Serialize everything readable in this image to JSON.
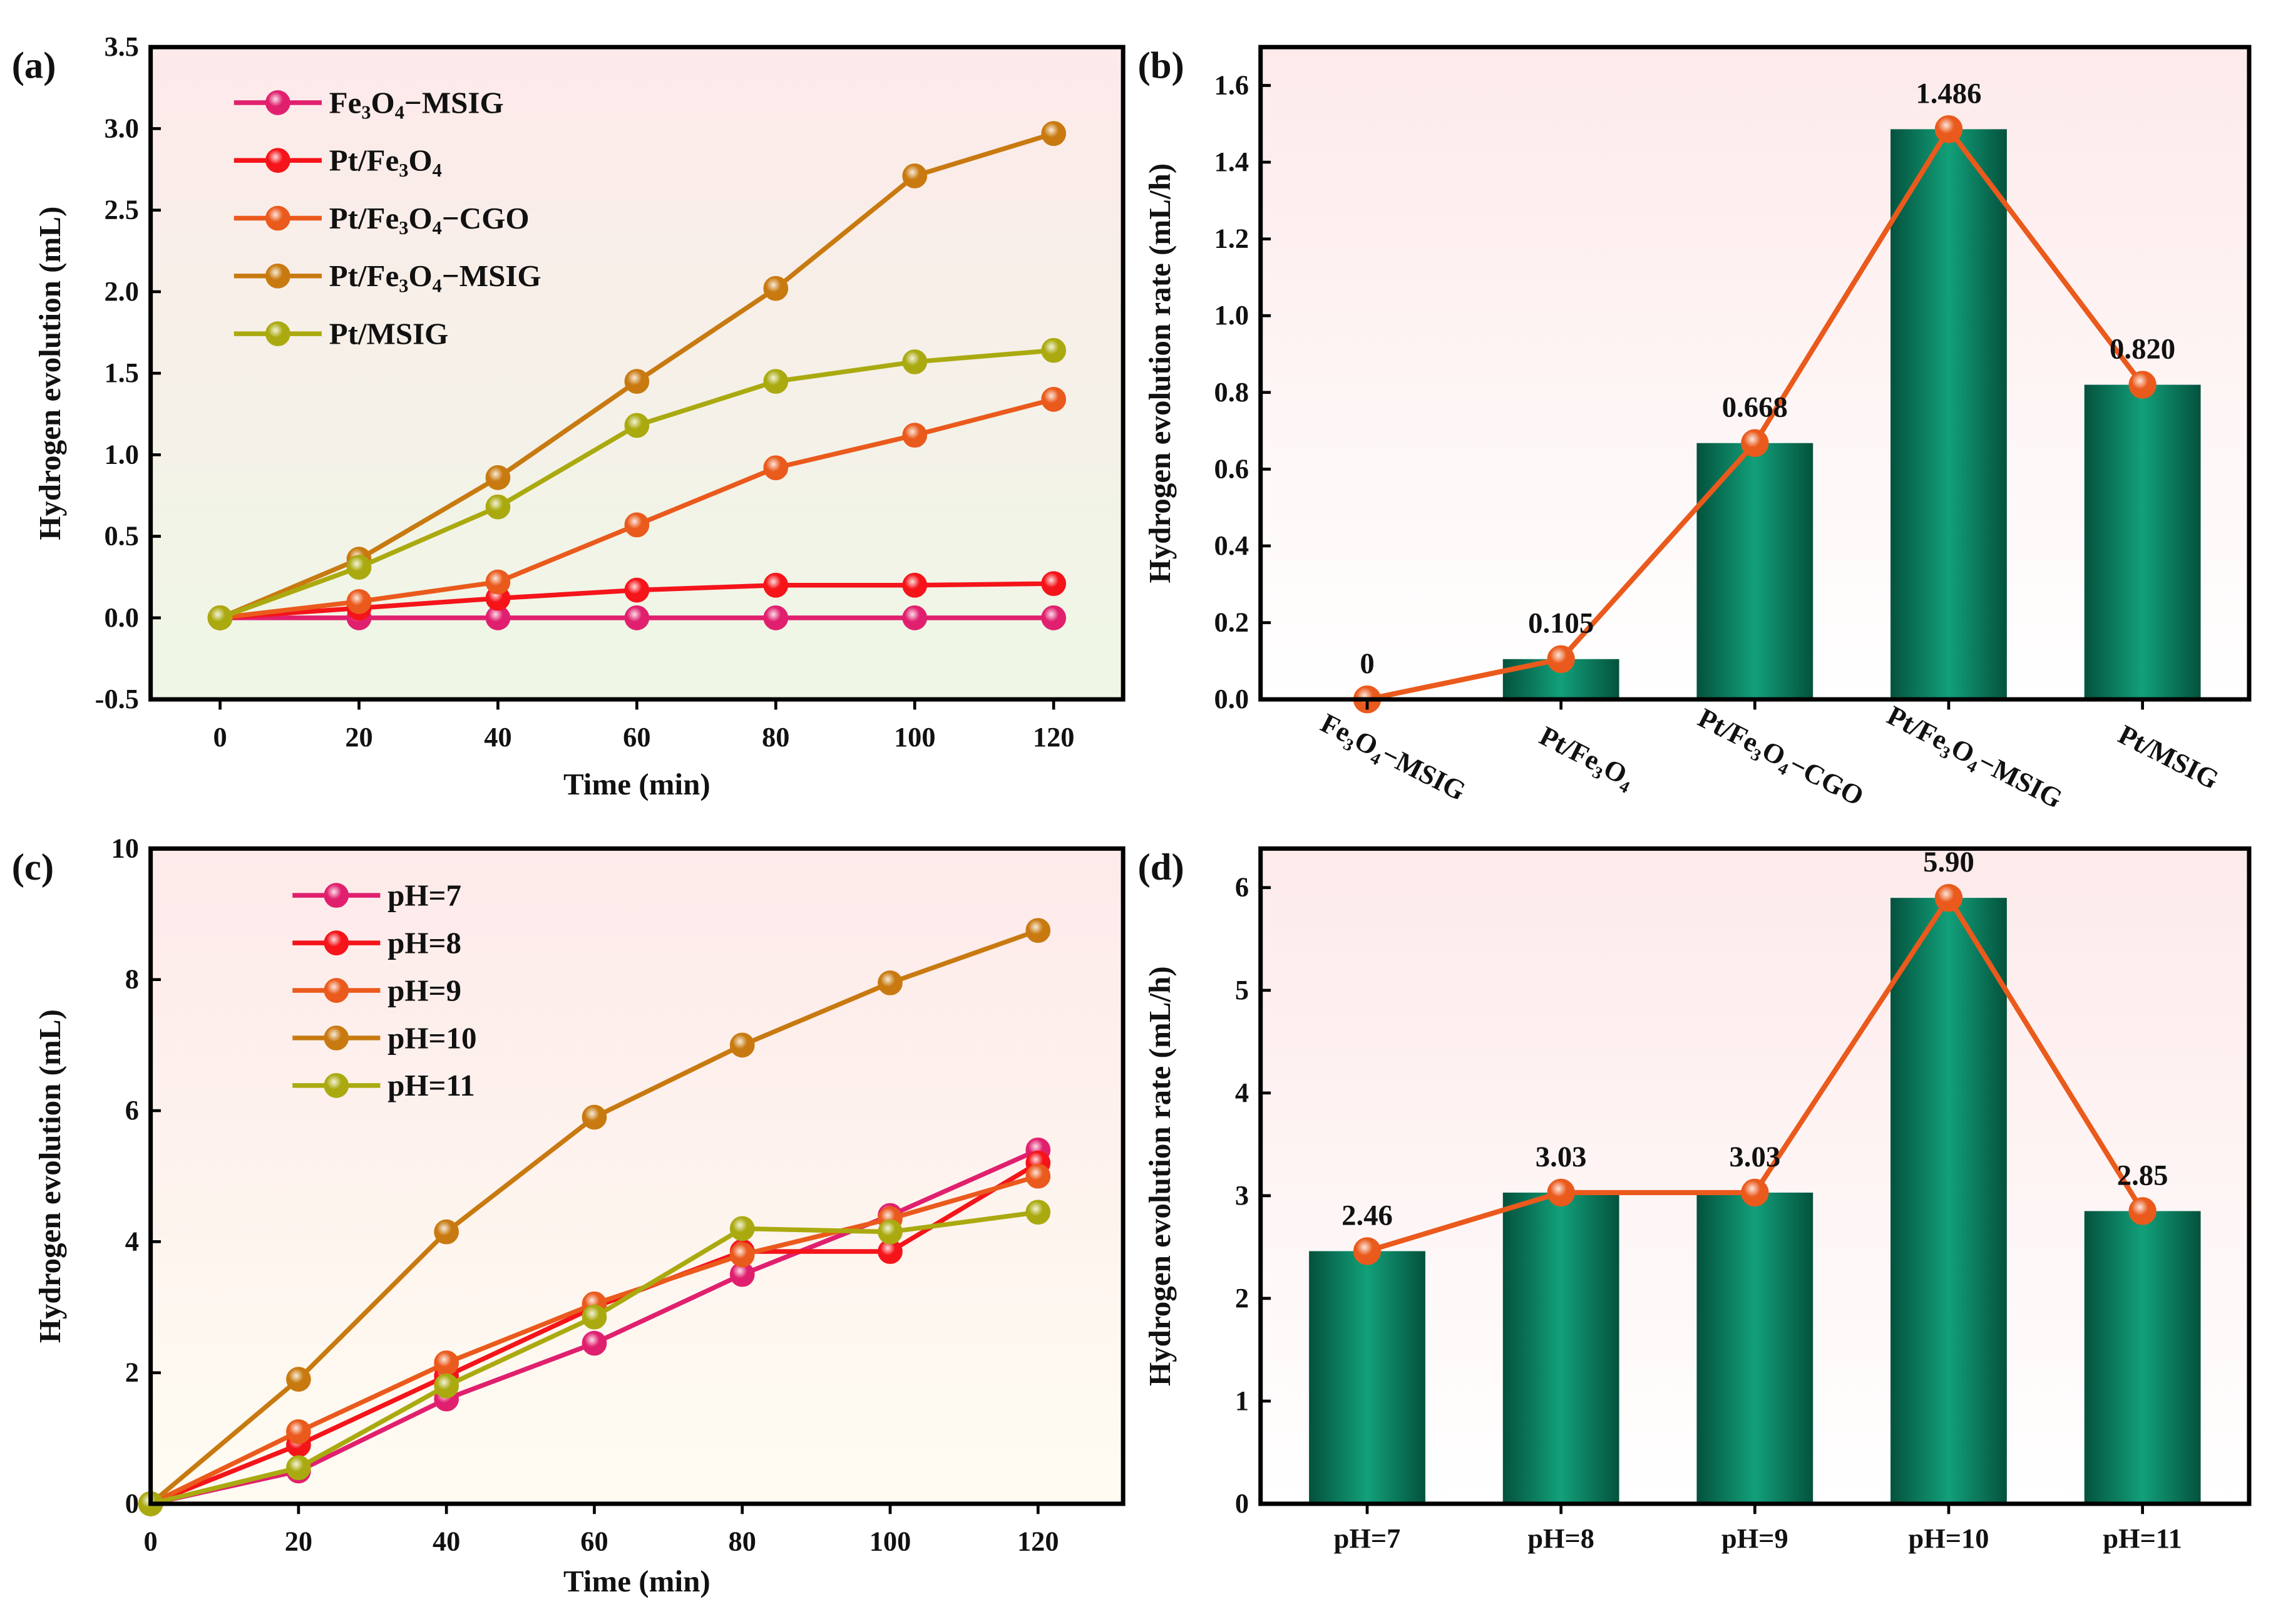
{
  "chart_data": [
    {
      "panel": "(a)",
      "type": "line",
      "xlabel": "Time (min)",
      "ylabel": "Hydrogen evolution (mL)",
      "x": [
        0,
        20,
        40,
        60,
        80,
        100,
        120
      ],
      "xticks": [
        0,
        20,
        40,
        60,
        80,
        100,
        120
      ],
      "yticks": [
        -0.5,
        0.0,
        0.5,
        1.0,
        1.5,
        2.0,
        2.5,
        3.0,
        3.5
      ],
      "ytick_labels": [
        "-0.5",
        "0.0",
        "0.5",
        "1.0",
        "1.5",
        "2.0",
        "2.5",
        "3.0",
        "3.5"
      ],
      "xlim": [
        -10,
        130
      ],
      "ylim": [
        -0.5,
        3.5
      ],
      "legend": "top-left",
      "series": [
        {
          "name": "Fe3O4-MSIG",
          "color": "#e0206e",
          "values": [
            0,
            0,
            0,
            0,
            0,
            0,
            0
          ]
        },
        {
          "name": "Pt/Fe3O4",
          "color": "#f4141a",
          "values": [
            0,
            0.06,
            0.12,
            0.17,
            0.2,
            0.2,
            0.21
          ]
        },
        {
          "name": "Pt/Fe3O4-CGO",
          "color": "#ea5a1c",
          "values": [
            0,
            0.1,
            0.22,
            0.57,
            0.92,
            1.12,
            1.34
          ]
        },
        {
          "name": "Pt/Fe3O4-MSIG",
          "color": "#c87a10",
          "values": [
            0,
            0.36,
            0.86,
            1.45,
            2.02,
            2.71,
            2.97
          ]
        },
        {
          "name": "Pt/MSIG",
          "color": "#aaaa10",
          "values": [
            0,
            0.31,
            0.68,
            1.18,
            1.45,
            1.57,
            1.64
          ]
        }
      ]
    },
    {
      "panel": "(b)",
      "type": "bar",
      "ylabel": "Hydrogen evolution rate (mL/h)",
      "categories": [
        "Fe3O4-MSIG",
        "Pt/Fe3O4",
        "Pt/Fe3O4-CGO",
        "Pt/Fe3O4-MSIG",
        "Pt/MSIG"
      ],
      "values": [
        0,
        0.105,
        0.668,
        1.486,
        0.82
      ],
      "value_labels": [
        "0",
        "0.105",
        "0.668",
        "1.486",
        "0.820"
      ],
      "yticks": [
        0,
        0.2,
        0.4,
        0.6,
        0.8,
        1.0,
        1.2,
        1.4,
        1.6
      ],
      "ytick_labels": [
        "0.0",
        "0.2",
        "0.4",
        "0.6",
        "0.8",
        "1.0",
        "1.2",
        "1.4",
        "1.6"
      ],
      "ylim": [
        0,
        1.7
      ],
      "bar_color": "#0b8a68",
      "line_color": "#ea5a1c"
    },
    {
      "panel": "(c)",
      "type": "line",
      "xlabel": "Time (min)",
      "ylabel": "Hydrogen evolution (mL)",
      "x": [
        0,
        20,
        40,
        60,
        80,
        100,
        120
      ],
      "xticks": [
        0,
        20,
        40,
        60,
        80,
        100,
        120
      ],
      "yticks": [
        0,
        2,
        4,
        6,
        8,
        10
      ],
      "ytick_labels": [
        "0",
        "2",
        "4",
        "6",
        "8",
        "10"
      ],
      "xlim": [
        0,
        131.5
      ],
      "ylim": [
        0,
        10
      ],
      "legend": "top-left",
      "series": [
        {
          "name": "pH=7",
          "color": "#e0206e",
          "values": [
            0,
            0.5,
            1.6,
            2.45,
            3.5,
            4.4,
            5.4
          ]
        },
        {
          "name": "pH=8",
          "color": "#f4141a",
          "values": [
            0,
            0.9,
            1.95,
            3.0,
            3.85,
            3.85,
            5.2
          ]
        },
        {
          "name": "pH=9",
          "color": "#ea5a1c",
          "values": [
            0,
            1.1,
            2.15,
            3.05,
            3.8,
            4.35,
            5.0
          ]
        },
        {
          "name": "pH=10",
          "color": "#c87a10",
          "values": [
            0,
            1.9,
            4.15,
            5.9,
            7.0,
            7.95,
            8.75
          ]
        },
        {
          "name": "pH=11",
          "color": "#aaaa10",
          "values": [
            0,
            0.55,
            1.8,
            2.85,
            4.2,
            4.15,
            4.45
          ]
        }
      ]
    },
    {
      "panel": "(d)",
      "type": "bar",
      "ylabel": "Hydrogen evolution rate (mL/h)",
      "categories": [
        "pH=7",
        "pH=8",
        "pH=9",
        "pH=10",
        "pH=11"
      ],
      "values": [
        2.46,
        3.03,
        3.03,
        5.9,
        2.85
      ],
      "value_labels": [
        "2.46",
        "3.03",
        "3.03",
        "5.90",
        "2.85"
      ],
      "yticks": [
        0,
        1,
        2,
        3,
        4,
        5,
        6
      ],
      "ytick_labels": [
        "0",
        "1",
        "2",
        "3",
        "4",
        "5",
        "6"
      ],
      "ylim": [
        0,
        6.38
      ],
      "bar_color": "#0b8a68",
      "line_color": "#ea5a1c"
    }
  ]
}
